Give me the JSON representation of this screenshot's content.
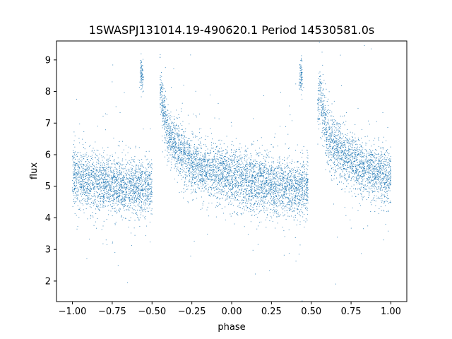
{
  "chart_data": {
    "type": "scatter",
    "title": "1SWASPJ131014.19-490620.1 Period 14530581.0s",
    "xlabel": "phase",
    "ylabel": "flux",
    "xlim": [
      -1.1,
      1.1
    ],
    "ylim": [
      1.35,
      9.6
    ],
    "x_ticks": [
      -1.0,
      -0.75,
      -0.5,
      -0.25,
      0.0,
      0.25,
      0.5,
      0.75,
      1.0
    ],
    "x_tick_labels": [
      "−1.00",
      "−0.75",
      "−0.50",
      "−0.25",
      "0.00",
      "0.25",
      "0.50",
      "0.75",
      "1.00"
    ],
    "y_ticks": [
      2,
      3,
      4,
      5,
      6,
      7,
      8,
      9
    ],
    "y_tick_labels": [
      "2",
      "3",
      "4",
      "5",
      "6",
      "7",
      "8",
      "9"
    ],
    "grid": false,
    "marker_color": "#1f77b4",
    "series": [
      {
        "name": "",
        "profile_x": [
          -1.0,
          -0.9,
          -0.8,
          -0.7,
          -0.6,
          -0.55,
          -0.5,
          -0.45,
          -0.42,
          -0.4,
          -0.35,
          -0.3,
          -0.25,
          -0.2,
          -0.1,
          0.0,
          0.1,
          0.2,
          0.3,
          0.4,
          0.45,
          0.5,
          0.55,
          0.58,
          0.6,
          0.65,
          0.7,
          0.75,
          0.8,
          0.9,
          1.0
        ],
        "profile_y": [
          5.3,
          5.2,
          5.1,
          5.0,
          5.0,
          4.9,
          5.0,
          8.0,
          7.2,
          6.6,
          6.3,
          6.0,
          5.8,
          5.6,
          5.45,
          5.3,
          5.2,
          5.1,
          5.0,
          4.9,
          5.0,
          5.0,
          8.0,
          7.2,
          6.6,
          6.3,
          6.0,
          5.8,
          5.6,
          5.45,
          5.3
        ],
        "gap_ranges": [
          [
            -0.5,
            -0.45
          ],
          [
            0.48,
            0.54
          ]
        ],
        "isolated_clusters": [
          {
            "x": -0.565,
            "y": 8.5
          },
          {
            "x": 0.435,
            "y": 8.5
          }
        ],
        "scatter": 0.45,
        "point_count": 9000
      }
    ]
  }
}
